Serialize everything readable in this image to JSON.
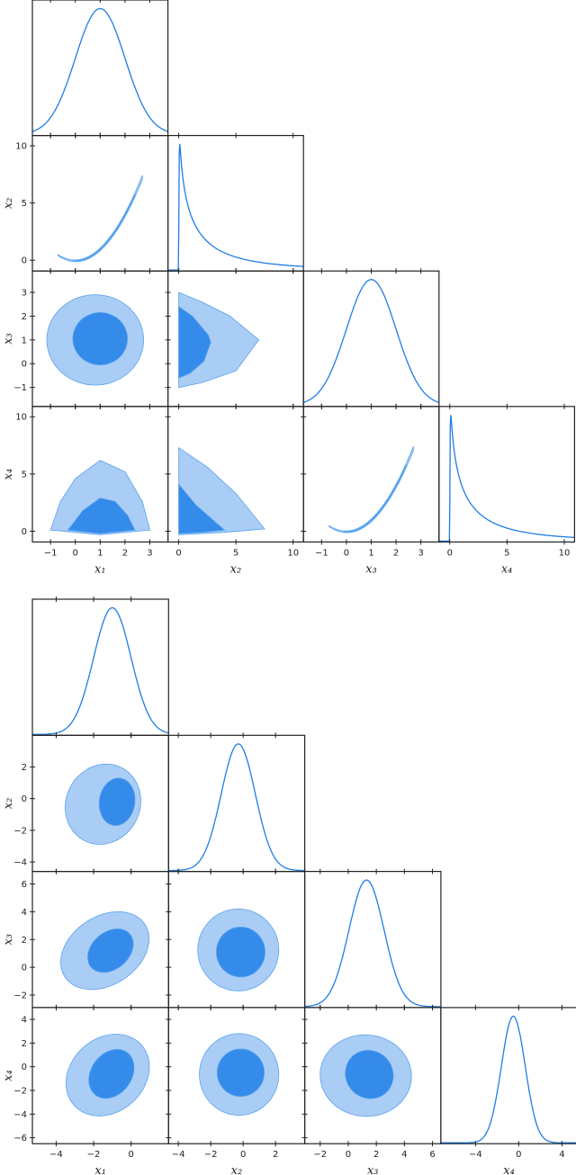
{
  "colors": {
    "curve": "#1f7ce8",
    "inner": "#348be9",
    "outer": "#aacdf5",
    "edge": "#5aa2f0",
    "frame": "#222222"
  },
  "chart_data": [
    {
      "type": "corner",
      "variables": [
        {
          "label": "x₁",
          "range_x": [
            -1.73,
            3.73
          ],
          "range_y": [
            -1.73,
            3.73
          ],
          "xticks": [
            -1,
            0,
            1,
            2,
            3
          ],
          "yticks": [
            -1,
            0,
            1,
            2,
            3
          ]
        },
        {
          "label": "x₂",
          "range_x": [
            -0.94,
            10.9
          ],
          "range_y": [
            -0.94,
            10.9
          ],
          "xticks": [
            0,
            5,
            10
          ],
          "yticks": [
            0,
            5,
            10
          ]
        },
        {
          "label": "x₃",
          "range_x": [
            -1.73,
            3.73
          ],
          "range_y": [
            -1.8,
            3.9
          ],
          "xticks": [
            -1,
            0,
            1,
            2,
            3
          ],
          "yticks": [
            -1,
            0,
            1,
            2,
            3
          ]
        },
        {
          "label": "x₄",
          "range_x": [
            -0.94,
            10.9
          ],
          "range_y": [
            -0.94,
            10.9
          ],
          "xticks": [
            0,
            5,
            10
          ],
          "yticks": [
            0,
            5,
            10
          ]
        }
      ],
      "marginals": [
        {
          "kind": "gaussian",
          "mean": 1.0,
          "sd": 1.0
        },
        {
          "kind": "heavy-tail",
          "mode": 0.1,
          "tail": 1.2
        },
        {
          "kind": "gaussian",
          "mean": 1.0,
          "sd": 1.0
        },
        {
          "kind": "heavy-tail",
          "mode": 0.1,
          "tail": 1.2
        }
      ],
      "contours": [
        {
          "x": 0,
          "y": 1,
          "kind": "parabola",
          "x_from": -0.7,
          "x_to": 2.7,
          "inner_from": -0.1,
          "inner_to": 2.4
        },
        {
          "x": 0,
          "y": 2,
          "kind": "ellipse",
          "outer": {
            "cx": 0.8,
            "cy": 1.0,
            "rx": 1.95,
            "ry": 1.9,
            "tilt": 0
          },
          "inner": {
            "cx": 1.0,
            "cy": 1.05,
            "rx": 1.1,
            "ry": 1.1,
            "tilt": 0
          }
        },
        {
          "x": 1,
          "y": 2,
          "kind": "polygon",
          "outer": [
            [
              0,
              -1.0
            ],
            [
              0,
              3.0
            ],
            [
              2,
              2.6
            ],
            [
              4.5,
              2.0
            ],
            [
              7,
              1.0
            ],
            [
              5,
              -0.3
            ],
            [
              2,
              -0.8
            ]
          ],
          "inner": [
            [
              0,
              -0.6
            ],
            [
              0,
              2.4
            ],
            [
              1.2,
              2.0
            ],
            [
              2.6,
              1.2
            ],
            [
              2.8,
              0.9
            ],
            [
              2.2,
              0.1
            ],
            [
              1,
              -0.4
            ]
          ]
        },
        {
          "x": 0,
          "y": 3,
          "kind": "polygon",
          "outer": [
            [
              -1,
              0.1
            ],
            [
              -0.6,
              2.6
            ],
            [
              0,
              4.6
            ],
            [
              1,
              6.2
            ],
            [
              2,
              5.2
            ],
            [
              2.7,
              2.6
            ],
            [
              3.0,
              0.1
            ],
            [
              1,
              -0.3
            ]
          ],
          "inner": [
            [
              -0.3,
              0.1
            ],
            [
              0.3,
              1.8
            ],
            [
              1,
              2.9
            ],
            [
              1.6,
              2.6
            ],
            [
              2.1,
              1.4
            ],
            [
              2.4,
              0.1
            ],
            [
              1,
              -0.2
            ]
          ]
        },
        {
          "x": 1,
          "y": 3,
          "kind": "polygon",
          "outer": [
            [
              0,
              -0.3
            ],
            [
              0,
              7.3
            ],
            [
              2.5,
              5.6
            ],
            [
              5,
              3.3
            ],
            [
              7.5,
              0.2
            ],
            [
              4,
              -0.1
            ]
          ],
          "inner": [
            [
              0,
              -0.2
            ],
            [
              0,
              4.1
            ],
            [
              1.5,
              2.3
            ],
            [
              4,
              0.1
            ],
            [
              2,
              -0.1
            ]
          ]
        },
        {
          "x": 2,
          "y": 3,
          "kind": "parabola",
          "x_from": -0.7,
          "x_to": 2.7,
          "inner_from": -0.1,
          "inner_to": 2.4
        }
      ]
    },
    {
      "type": "corner",
      "variables": [
        {
          "label": "x₁",
          "range_x": [
            -5.27,
            2.0
          ],
          "range_y": [
            -5.27,
            2.0
          ],
          "xticks": [
            -4,
            -2,
            0
          ],
          "yticks": [
            -4,
            -2,
            0
          ]
        },
        {
          "label": "x₂",
          "range_x": [
            -4.6,
            3.8
          ],
          "range_y": [
            -4.6,
            4.0
          ],
          "xticks": [
            -4,
            -2,
            0,
            2
          ],
          "yticks": [
            -4,
            -2,
            0,
            2
          ]
        },
        {
          "label": "x₃",
          "range_x": [
            -3.1,
            6.6
          ],
          "range_y": [
            -2.9,
            6.9
          ],
          "xticks": [
            -2,
            0,
            2,
            4,
            6
          ],
          "yticks": [
            -2,
            0,
            2,
            4,
            6
          ]
        },
        {
          "label": "x₄",
          "range_x": [
            -7.2,
            5.4
          ],
          "range_y": [
            -6.5,
            5.0
          ],
          "xticks": [
            -4,
            0,
            4
          ],
          "yticks": [
            -6,
            -4,
            -2,
            0,
            2,
            4
          ]
        }
      ],
      "marginals": [
        {
          "kind": "gaussian",
          "mean": -1.0,
          "sd": 1.0
        },
        {
          "kind": "gaussian",
          "mean": -0.3,
          "sd": 1.05
        },
        {
          "kind": "gaussian",
          "mean": 1.3,
          "sd": 1.25
        },
        {
          "kind": "gaussian",
          "mean": -0.5,
          "sd": 1.1
        }
      ],
      "contours": [
        {
          "x": 0,
          "y": 1,
          "kind": "ellipse",
          "outer": {
            "cx": -1.5,
            "cy": -0.35,
            "rx": 2.0,
            "ry": 2.55,
            "tilt": -10
          },
          "inner": {
            "cx": -0.75,
            "cy": -0.2,
            "rx": 0.95,
            "ry": 1.5,
            "tilt": -5
          }
        },
        {
          "x": 0,
          "y": 2,
          "kind": "ellipse",
          "outer": {
            "cx": -1.4,
            "cy": 1.2,
            "rx": 2.1,
            "ry": 3.0,
            "tilt": -30
          },
          "inner": {
            "cx": -1.1,
            "cy": 1.2,
            "rx": 1.1,
            "ry": 1.65,
            "tilt": -25
          }
        },
        {
          "x": 1,
          "y": 2,
          "kind": "ellipse",
          "outer": {
            "cx": -0.3,
            "cy": 1.25,
            "rx": 2.5,
            "ry": 2.95,
            "tilt": 0
          },
          "inner": {
            "cx": -0.15,
            "cy": 1.1,
            "rx": 1.5,
            "ry": 1.8,
            "tilt": 0
          }
        },
        {
          "x": 0,
          "y": 3,
          "kind": "ellipse",
          "outer": {
            "cx": -1.25,
            "cy": -0.7,
            "rx": 2.15,
            "ry": 3.5,
            "tilt": -12
          },
          "inner": {
            "cx": -1.05,
            "cy": -0.6,
            "rx": 1.15,
            "ry": 2.1,
            "tilt": -12
          }
        },
        {
          "x": 1,
          "y": 3,
          "kind": "ellipse",
          "outer": {
            "cx": -0.25,
            "cy": -0.65,
            "rx": 2.45,
            "ry": 3.45,
            "tilt": 0
          },
          "inner": {
            "cx": -0.15,
            "cy": -0.5,
            "rx": 1.45,
            "ry": 2.0,
            "tilt": 0
          }
        },
        {
          "x": 2,
          "y": 3,
          "kind": "ellipse",
          "outer": {
            "cx": 1.25,
            "cy": -0.75,
            "rx": 3.25,
            "ry": 3.45,
            "tilt": 8
          },
          "inner": {
            "cx": 1.5,
            "cy": -0.65,
            "rx": 1.7,
            "ry": 2.05,
            "tilt": 8
          }
        }
      ]
    }
  ]
}
